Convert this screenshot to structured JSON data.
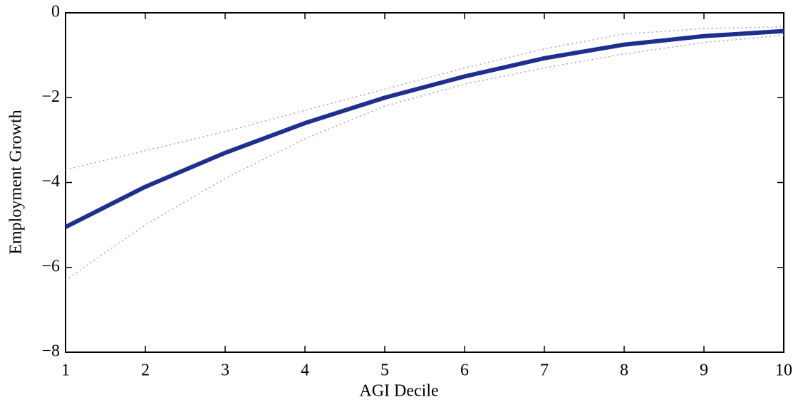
{
  "chart_data": {
    "type": "line",
    "xlabel": "AGI Decile",
    "ylabel": "Employment Growth",
    "x": [
      1,
      2,
      3,
      4,
      5,
      6,
      7,
      8,
      9,
      10
    ],
    "series": [
      {
        "color": "#1f2f8f",
        "linestyle": "solid",
        "linewidth": 6,
        "values": [
          -5.05,
          -4.1,
          -3.3,
          -2.6,
          -2.0,
          -1.5,
          -1.07,
          -0.75,
          -0.55,
          -0.43
        ]
      },
      {
        "color": "#a0a4c8",
        "linestyle": "dotted",
        "linewidth": 1.5,
        "values": [
          -3.7,
          -3.25,
          -2.8,
          -2.3,
          -1.8,
          -1.3,
          -0.85,
          -0.5,
          -0.37,
          -0.33
        ]
      },
      {
        "color": "#a0a4c8",
        "linestyle": "dotted",
        "linewidth": 1.5,
        "values": [
          -6.3,
          -5.0,
          -3.9,
          -2.97,
          -2.2,
          -1.68,
          -1.3,
          -0.97,
          -0.7,
          -0.53
        ]
      }
    ],
    "xlim": [
      1,
      10
    ],
    "xticks": [
      1,
      2,
      3,
      4,
      5,
      6,
      7,
      8,
      9,
      10
    ],
    "ylim": [
      -8,
      0
    ],
    "yticks": [
      {
        "value": -8,
        "label": "−8"
      },
      {
        "value": -6,
        "label": "−6"
      },
      {
        "value": -4,
        "label": "−4"
      },
      {
        "value": -2,
        "label": "−2"
      },
      0
    ]
  }
}
